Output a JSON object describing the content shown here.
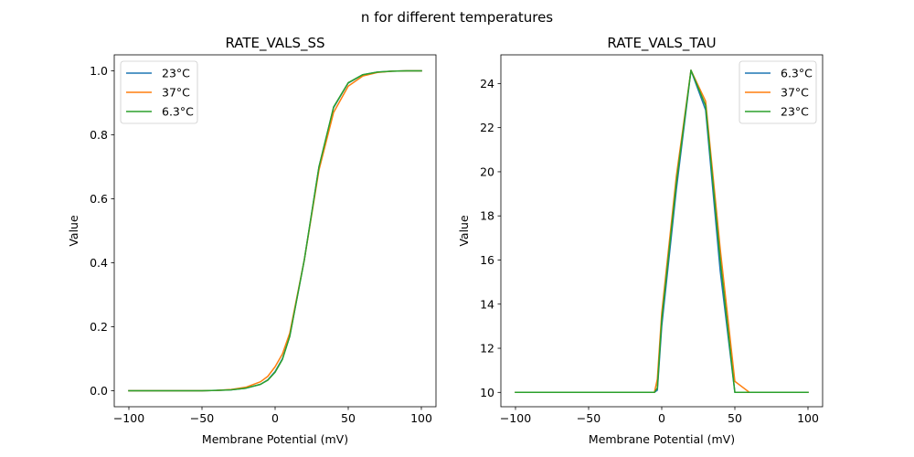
{
  "chart_data": {
    "suptitle": "n for different temperatures",
    "charts": [
      {
        "type": "line",
        "title": "RATE_VALS_SS",
        "xlabel": "Membrane Potential (mV)",
        "ylabel": "Value",
        "xlim": [
          -110,
          110
        ],
        "ylim": [
          -0.05,
          1.05
        ],
        "xticks": [
          -100,
          -50,
          0,
          50,
          100
        ],
        "xtick_labels": [
          "−100",
          "−50",
          "0",
          "50",
          "100"
        ],
        "yticks": [
          0.0,
          0.2,
          0.4,
          0.6,
          0.8,
          1.0
        ],
        "ytick_labels": [
          "0.0",
          "0.2",
          "0.4",
          "0.6",
          "0.8",
          "1.0"
        ],
        "legend_position": "upper-left",
        "x": [
          -100,
          -90,
          -80,
          -70,
          -60,
          -50,
          -40,
          -30,
          -20,
          -10,
          -5,
          0,
          5,
          10,
          20,
          30,
          40,
          50,
          60,
          70,
          80,
          90,
          100
        ],
        "series": [
          {
            "name": "23°C",
            "color": "#1f77b4",
            "values": [
              0.0,
              0.0,
              0.0,
              0.0,
              0.0,
              0.0,
              0.001,
              0.003,
              0.008,
              0.02,
              0.034,
              0.06,
              0.1,
              0.17,
              0.41,
              0.7,
              0.885,
              0.962,
              0.988,
              0.996,
              0.999,
              1.0,
              1.0
            ]
          },
          {
            "name": "37°C",
            "color": "#ff7f0e",
            "values": [
              0.0,
              0.0,
              0.0,
              0.0,
              0.0,
              0.0,
              0.001,
              0.004,
              0.011,
              0.028,
              0.045,
              0.075,
              0.115,
              0.18,
              0.41,
              0.69,
              0.87,
              0.952,
              0.984,
              0.995,
              0.999,
              1.0,
              1.0
            ]
          },
          {
            "name": "6.3°C",
            "color": "#2ca02c",
            "values": [
              0.0,
              0.0,
              0.0,
              0.0,
              0.0,
              0.0,
              0.001,
              0.003,
              0.008,
              0.02,
              0.033,
              0.058,
              0.098,
              0.17,
              0.41,
              0.7,
              0.887,
              0.963,
              0.988,
              0.996,
              0.999,
              1.0,
              1.0
            ]
          }
        ]
      },
      {
        "type": "line",
        "title": "RATE_VALS_TAU",
        "xlabel": "Membrane Potential (mV)",
        "ylabel": "Value",
        "xlim": [
          -110,
          110
        ],
        "ylim": [
          9.35,
          25.3
        ],
        "xticks": [
          -100,
          -50,
          0,
          50,
          100
        ],
        "xtick_labels": [
          "−100",
          "−50",
          "0",
          "50",
          "100"
        ],
        "yticks": [
          10,
          12,
          14,
          16,
          18,
          20,
          22,
          24
        ],
        "ytick_labels": [
          "10",
          "12",
          "14",
          "16",
          "18",
          "20",
          "22",
          "24"
        ],
        "legend_position": "upper-right",
        "series": [
          {
            "name": "6.3°C",
            "color": "#1f77b4",
            "x": [
              -100,
              -60,
              -20,
              -10,
              -5,
              -3,
              0,
              10,
              20,
              30,
              40,
              50,
              60,
              70,
              80,
              90,
              100
            ],
            "values": [
              10.0,
              10.0,
              10.0,
              10.0,
              10.0,
              10.1,
              13.0,
              19.2,
              24.6,
              22.8,
              15.5,
              10.0,
              10.0,
              10.0,
              10.0,
              10.0,
              10.0
            ]
          },
          {
            "name": "37°C",
            "color": "#ff7f0e",
            "x": [
              -100,
              -60,
              -20,
              -10,
              -5,
              -3,
              0,
              10,
              20,
              30,
              40,
              50,
              60,
              70,
              80,
              90,
              100
            ],
            "values": [
              10.0,
              10.0,
              10.0,
              10.0,
              10.0,
              10.6,
              13.6,
              19.8,
              24.6,
              23.2,
              16.5,
              10.5,
              10.0,
              10.0,
              10.0,
              10.0,
              10.0
            ]
          },
          {
            "name": "23°C",
            "color": "#2ca02c",
            "x": [
              -100,
              -60,
              -20,
              -10,
              -5,
              -3,
              0,
              10,
              20,
              30,
              40,
              50,
              60,
              70,
              80,
              90,
              100
            ],
            "values": [
              10.0,
              10.0,
              10.0,
              10.0,
              10.0,
              10.2,
              13.3,
              19.5,
              24.6,
              23.0,
              16.0,
              10.0,
              10.0,
              10.0,
              10.0,
              10.0,
              10.0
            ]
          }
        ]
      }
    ]
  }
}
